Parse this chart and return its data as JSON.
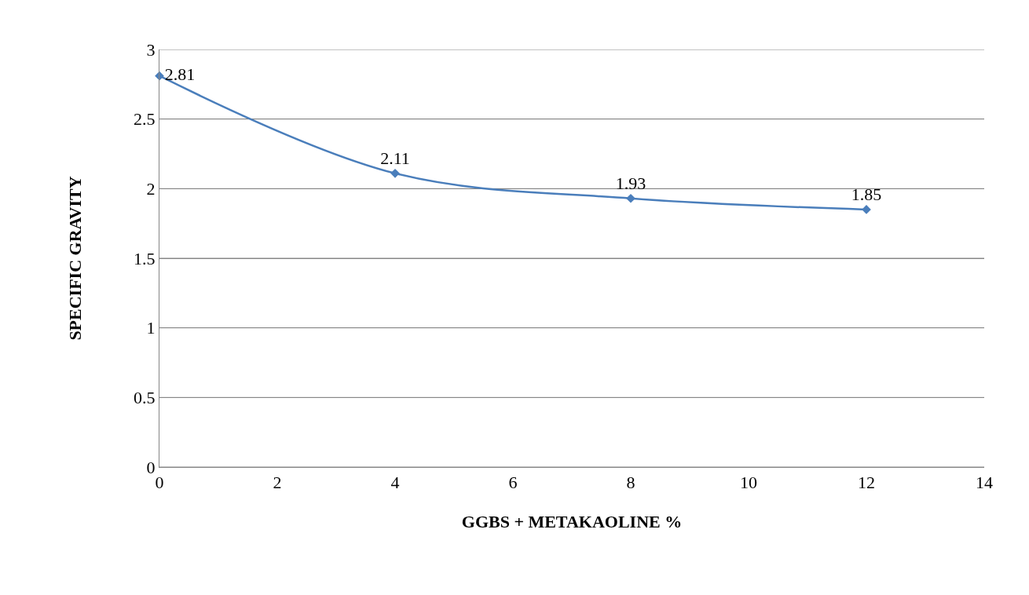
{
  "chart_data": {
    "type": "line",
    "xlabel": "GGBS + METAKAOLINE %",
    "ylabel": "SPECIFIC GRAVITY",
    "x": [
      0,
      4,
      8,
      12
    ],
    "series": [
      {
        "color": "#4a7ebb",
        "values": [
          2.81,
          2.11,
          1.93,
          1.85
        ]
      }
    ],
    "xlim": [
      0,
      14
    ],
    "xticks": [
      0,
      2,
      4,
      6,
      8,
      10,
      12,
      14
    ],
    "ylim": [
      0,
      3
    ],
    "yticks": [
      0,
      0.5,
      1,
      1.5,
      2,
      2.5,
      3
    ],
    "grid": "y",
    "marker": "diamond",
    "line_style": "solid",
    "data_labels": true
  }
}
